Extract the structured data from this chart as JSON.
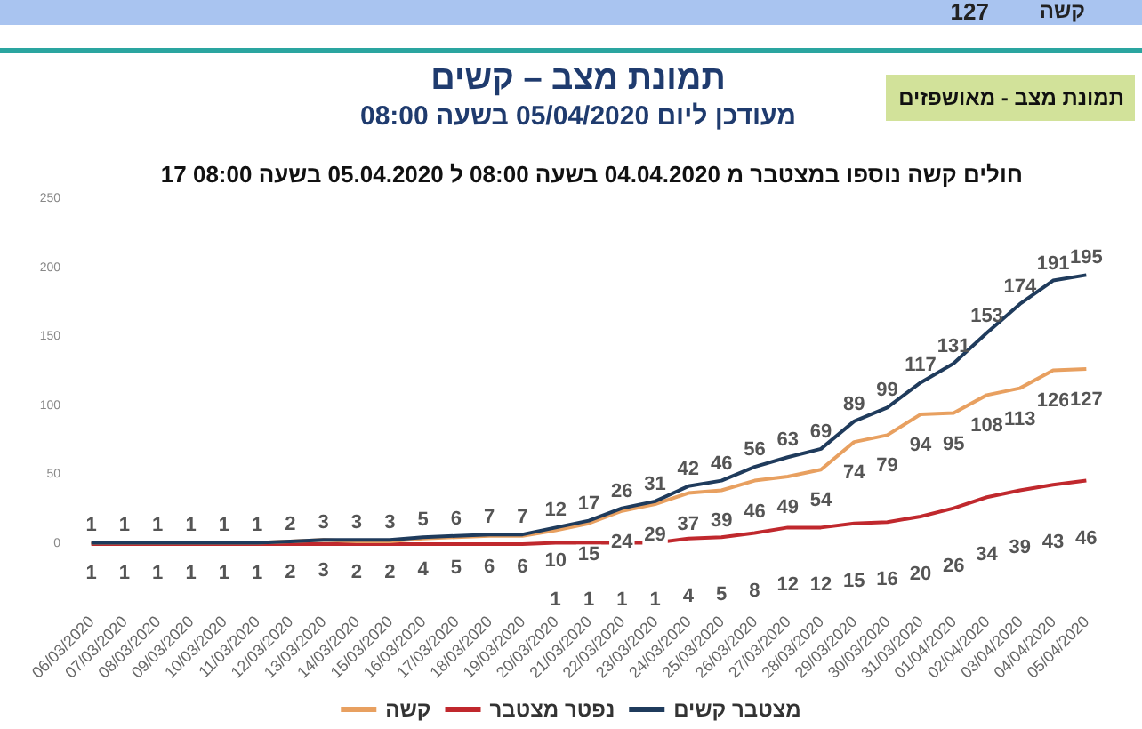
{
  "chart_data": {
    "type": "line",
    "title": "תמונת מצב – קשים",
    "subtitle": "מעודכן ליום 05/04/2020 בשעה 08:00",
    "annotations": [
      "חולים קשה נוספו במצטבר מ 04.04.2020 בשעה 08:00 ל 05.04.2020 בשעה 08:00 17",
      "תמונת מצב - מאושפזים",
      "קשה",
      "127"
    ],
    "categories": [
      "06/03/2020",
      "07/03/2020",
      "08/03/2020",
      "09/03/2020",
      "10/03/2020",
      "11/03/2020",
      "12/03/2020",
      "13/03/2020",
      "14/03/2020",
      "15/03/2020",
      "16/03/2020",
      "17/03/2020",
      "18/03/2020",
      "19/03/2020",
      "20/03/2020",
      "21/03/2020",
      "22/03/2020",
      "23/03/2020",
      "24/03/2020",
      "25/03/2020",
      "26/03/2020",
      "27/03/2020",
      "28/03/2020",
      "29/03/2020",
      "30/03/2020",
      "31/03/2020",
      "01/04/2020",
      "02/04/2020",
      "03/04/2020",
      "04/04/2020",
      "05/04/2020"
    ],
    "series": [
      {
        "name": "מצטבר קשים",
        "color": "#1f3b5c",
        "values": [
          1,
          1,
          1,
          1,
          1,
          1,
          2,
          3,
          3,
          3,
          5,
          6,
          7,
          7,
          12,
          17,
          26,
          31,
          42,
          46,
          56,
          63,
          69,
          89,
          99,
          117,
          131,
          153,
          174,
          191,
          195
        ]
      },
      {
        "name": "נפטר מצטבר",
        "color": "#c0282d",
        "values": [
          0,
          0,
          0,
          0,
          0,
          0,
          0,
          0,
          0,
          0,
          0,
          0,
          0,
          0,
          1,
          1,
          1,
          1,
          4,
          5,
          8,
          12,
          12,
          15,
          16,
          20,
          26,
          34,
          39,
          43,
          46
        ],
        "value_labels": [
          null,
          null,
          null,
          null,
          null,
          null,
          null,
          null,
          null,
          null,
          null,
          null,
          null,
          null,
          "1",
          "1",
          "1",
          "1",
          "4",
          "5",
          "8",
          "12",
          "12",
          "15",
          "16",
          "20",
          "26",
          "34",
          "39",
          "43",
          "46"
        ]
      },
      {
        "name": "קשה",
        "color": "#e8a060",
        "values": [
          1,
          1,
          1,
          1,
          1,
          1,
          2,
          3,
          2,
          2,
          4,
          5,
          6,
          6,
          10,
          15,
          24,
          29,
          37,
          39,
          46,
          49,
          54,
          74,
          79,
          94,
          95,
          108,
          113,
          126,
          127
        ]
      }
    ],
    "ylim": [
      0,
      250
    ],
    "yticks": [
      0,
      50,
      100,
      150,
      200,
      250
    ],
    "grid": false,
    "legend": "bottom",
    "data_labels": true,
    "marker": "none"
  }
}
